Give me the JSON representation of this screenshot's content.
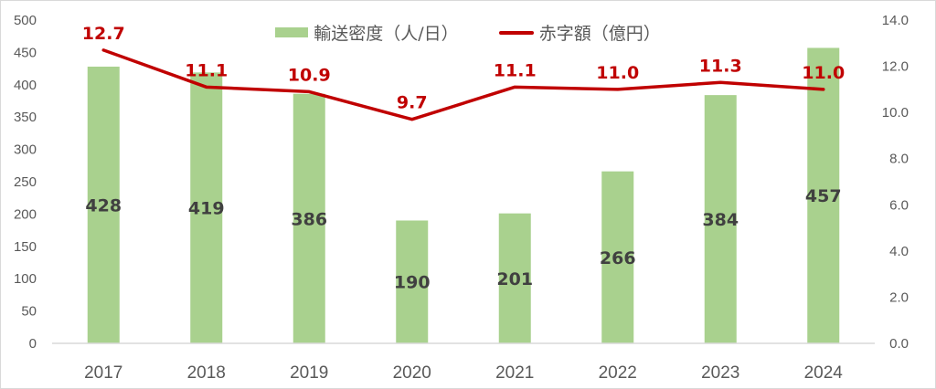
{
  "chart_data": {
    "type": "bar+line",
    "categories": [
      "2017",
      "2018",
      "2019",
      "2020",
      "2021",
      "2022",
      "2023",
      "2024"
    ],
    "series": [
      {
        "name": "輸送密度（人/日）",
        "type": "bar",
        "axis": "left",
        "color": "#a9d18e",
        "values": [
          428,
          419,
          386,
          190,
          201,
          266,
          384,
          457
        ]
      },
      {
        "name": "赤字額（億円）",
        "type": "line",
        "axis": "right",
        "color": "#c00000",
        "values": [
          12.7,
          11.1,
          10.9,
          9.7,
          11.1,
          11.0,
          11.3,
          11.0
        ]
      }
    ],
    "title": "",
    "xlabel": "",
    "ylabel_left": "",
    "ylabel_right": "",
    "ylim_left": [
      0,
      500
    ],
    "yticks_left": [
      "0",
      "50",
      "100",
      "150",
      "200",
      "250",
      "300",
      "350",
      "400",
      "450",
      "500"
    ],
    "ylim_right": [
      0,
      14
    ],
    "yticks_right": [
      "0.0",
      "2.0",
      "4.0",
      "6.0",
      "8.0",
      "10.0",
      "12.0",
      "14.0"
    ],
    "grid": false,
    "legend_position": "top"
  },
  "legend": {
    "bar_label": "輸送密度（人/日）",
    "line_label": "赤字額（億円）"
  }
}
